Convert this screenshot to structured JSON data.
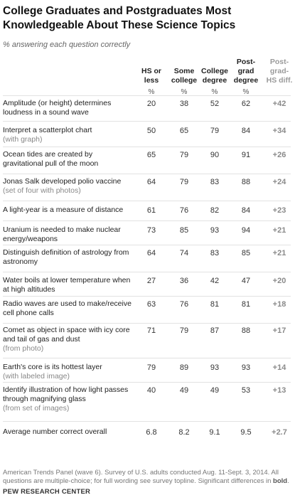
{
  "title": "College Graduates and Postgraduates Most Knowledgeable About These Science Topics",
  "subtitle": "% answering each question correctly",
  "columns": [
    "HS or less",
    "Some college",
    "College degree",
    "Post-grad degree",
    "Post-grad-HS diff."
  ],
  "pct_label": "%",
  "chart_data": {
    "type": "table",
    "title": "College Graduates and Postgraduates Most Knowledgeable About These Science Topics",
    "subtitle": "% answering each question correctly",
    "columns": [
      "HS or less",
      "Some college",
      "College degree",
      "Post-grad degree",
      "Post-grad-HS diff."
    ],
    "rows": [
      {
        "label": "Amplitude (or height) determines loudness in a sound wave",
        "note": "",
        "values": [
          "20",
          "38",
          "52",
          "62",
          "+42"
        ]
      },
      {
        "label": "Interpret a scatterplot chart",
        "note": "(with graph)",
        "values": [
          "50",
          "65",
          "79",
          "84",
          "+34"
        ]
      },
      {
        "label": "Ocean tides are created by gravitational pull of the moon",
        "note": "",
        "values": [
          "65",
          "79",
          "90",
          "91",
          "+26"
        ]
      },
      {
        "label": "Jonas Salk developed polio vaccine",
        "note": "(set of four with photos)",
        "values": [
          "64",
          "79",
          "83",
          "88",
          "+24"
        ]
      },
      {
        "label": "A light-year is a measure of distance",
        "note": "",
        "values": [
          "61",
          "76",
          "82",
          "84",
          "+23"
        ]
      },
      {
        "label": "Uranium is needed to make nuclear energy/weapons",
        "note": "",
        "values": [
          "73",
          "85",
          "93",
          "94",
          "+21"
        ]
      },
      {
        "label": "Distinguish definition of astrology from astronomy",
        "note": "",
        "values": [
          "64",
          "74",
          "83",
          "85",
          "+21"
        ]
      },
      {
        "label": "Water boils at lower temperature when at high altitudes",
        "note": "",
        "values": [
          "27",
          "36",
          "42",
          "47",
          "+20"
        ]
      },
      {
        "label": "Radio waves are used to make/receive cell phone calls",
        "note": "",
        "values": [
          "63",
          "76",
          "81",
          "81",
          "+18"
        ]
      },
      {
        "label": "Comet as object in space with icy core and tail of gas and dust",
        "note": "(from photo)",
        "values": [
          "71",
          "79",
          "87",
          "88",
          "+17"
        ]
      },
      {
        "label": "Earth's core is its hottest layer",
        "note": "(with labeled image)",
        "values": [
          "79",
          "89",
          "93",
          "93",
          "+14"
        ]
      },
      {
        "label": "Identify illustration of how light passes through magnifying glass",
        "note": "(from set of images)",
        "values": [
          "40",
          "49",
          "49",
          "53",
          "+13"
        ]
      },
      {
        "label": "Average number correct overall",
        "note": "",
        "values": [
          "6.8",
          "8.2",
          "9.1",
          "9.5",
          "+2.7"
        ]
      }
    ]
  },
  "footnote_text": "American Trends Panel (wave 6). Survey of U.S. adults conducted Aug. 11-Sept. 3, 2014. All questions are multiple-choice; for full wording see survey topline. Significant differences in",
  "footnote_bold": "bold",
  "footnote_end": ".",
  "source": "PEW RESEARCH CENTER"
}
